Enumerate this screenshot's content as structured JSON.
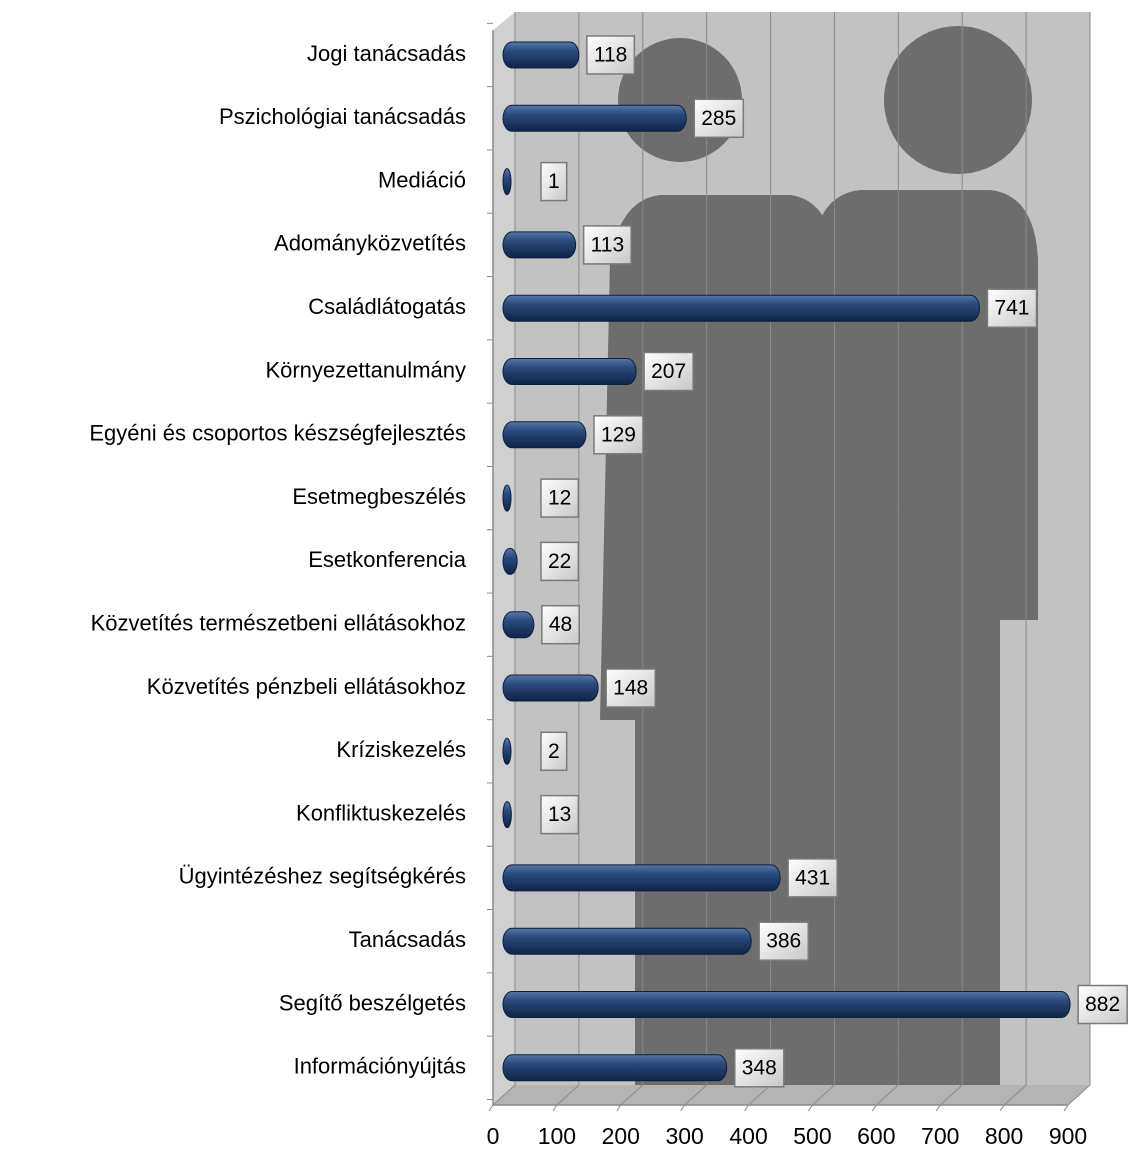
{
  "chart_data": {
    "type": "bar",
    "orientation": "horizontal",
    "categories": [
      "Jogi tanácsadás",
      "Pszichológiai tanácsadás",
      "Mediáció",
      "Adományközvetítés",
      "Családlátogatás",
      "Környezettanulmány",
      "Egyéni és csoportos készségfejlesztés",
      "Esetmegbeszélés",
      "Esetkonferencia",
      "Közvetítés természetbeni ellátásokhoz",
      "Közvetítés pénzbeli ellátásokhoz",
      "Kríziskezelés",
      "Konfliktuskezelés",
      "Ügyintézéshez segítségkérés",
      "Tanácsadás",
      "Segítő beszélgetés",
      "Információnyújtás"
    ],
    "values": [
      118,
      285,
      1,
      113,
      741,
      207,
      129,
      12,
      22,
      48,
      148,
      2,
      13,
      431,
      386,
      882,
      348
    ],
    "color": "#1f3d6e",
    "xlim": [
      0,
      900
    ],
    "xticks": [
      0,
      100,
      200,
      300,
      400,
      500,
      600,
      700,
      800,
      900
    ],
    "grid": true
  }
}
